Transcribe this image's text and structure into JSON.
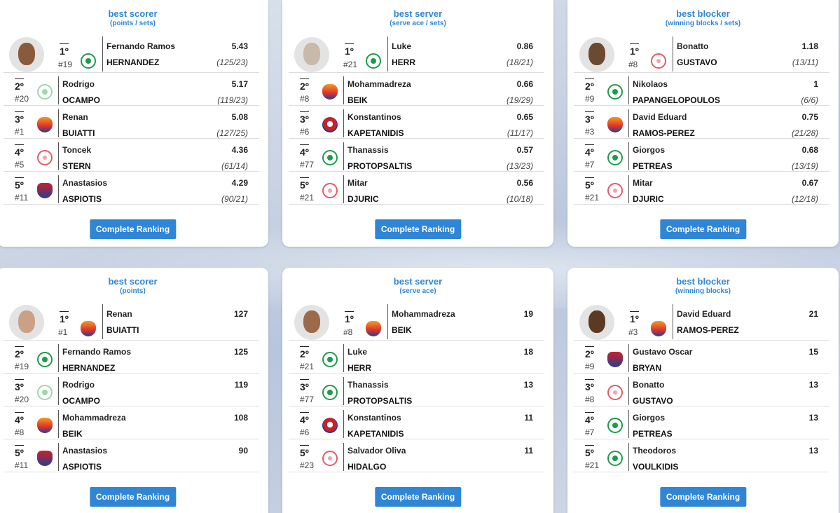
{
  "button_label": "Complete Ranking",
  "colors": {
    "accent": "#2f86d6"
  },
  "cards": [
    {
      "title": "best scorer",
      "subtitle": "(points / sets)",
      "rows": [
        {
          "rank": "1º",
          "jersey": "#19",
          "logo": "panathinaikos-logo",
          "first": "Fernando Ramos",
          "last": "HERNANDEZ",
          "value": "5.43",
          "detail": "(125/23)"
        },
        {
          "rank": "2º",
          "jersey": "#20",
          "logo": "panathinaikos-light-logo",
          "first": "Rodrigo",
          "last": "OCAMPO",
          "value": "5.17",
          "detail": "(119/23)"
        },
        {
          "rank": "3º",
          "jersey": "#1",
          "logo": "milon-logo",
          "first": "Renan",
          "last": "BUIATTI",
          "value": "5.08",
          "detail": "(127/25)"
        },
        {
          "rank": "4º",
          "jersey": "#5",
          "logo": "olympiacos-logo",
          "first": "Toncek",
          "last": "STERN",
          "value": "4.36",
          "detail": "(61/14)"
        },
        {
          "rank": "5º",
          "jersey": "#11",
          "logo": "kifisia-logo",
          "first": "Anastasios",
          "last": "ASPIOTIS",
          "value": "4.29",
          "detail": "(90/21)"
        }
      ]
    },
    {
      "title": "best server",
      "subtitle": "(serve ace / sets)",
      "rows": [
        {
          "rank": "1º",
          "jersey": "#21",
          "logo": "panathinaikos-logo",
          "first": "Luke",
          "last": "HERR",
          "value": "0.86",
          "detail": "(18/21)"
        },
        {
          "rank": "2º",
          "jersey": "#8",
          "logo": "milon-logo",
          "first": "Mohammadreza",
          "last": "BEIK",
          "value": "0.66",
          "detail": "(19/29)"
        },
        {
          "rank": "3º",
          "jersey": "#6",
          "logo": "foinikas-logo",
          "first": "Konstantinos",
          "last": "KAPETANIDIS",
          "value": "0.65",
          "detail": "(11/17)"
        },
        {
          "rank": "4º",
          "jersey": "#77",
          "logo": "panathinaikos-logo",
          "first": "Thanassis",
          "last": "PROTOPSALTIS",
          "value": "0.57",
          "detail": "(13/23)"
        },
        {
          "rank": "5º",
          "jersey": "#21",
          "logo": "olympiacos-logo",
          "first": "Mitar",
          "last": "DJURIC",
          "value": "0.56",
          "detail": "(10/18)"
        }
      ]
    },
    {
      "title": "best blocker",
      "subtitle": "(winning blocks / sets)",
      "rows": [
        {
          "rank": "1º",
          "jersey": "#8",
          "logo": "olympiacos-logo",
          "first": "Bonatto",
          "last": "GUSTAVO",
          "value": "1.18",
          "detail": "(13/11)"
        },
        {
          "rank": "2º",
          "jersey": "#9",
          "logo": "panathinaikos-logo",
          "first": "Nikolaos",
          "last": "PAPANGELOPOULOS",
          "value": "1",
          "detail": "(6/6)"
        },
        {
          "rank": "3º",
          "jersey": "#3",
          "logo": "milon-logo",
          "first": "David Eduard",
          "last": "RAMOS-PEREZ",
          "value": "0.75",
          "detail": "(21/28)"
        },
        {
          "rank": "4º",
          "jersey": "#7",
          "logo": "panathinaikos-logo",
          "first": "Giorgos",
          "last": "PETREAS",
          "value": "0.68",
          "detail": "(13/19)"
        },
        {
          "rank": "5º",
          "jersey": "#21",
          "logo": "olympiacos-logo",
          "first": "Mitar",
          "last": "DJURIC",
          "value": "0.67",
          "detail": "(12/18)"
        }
      ]
    },
    {
      "title": "best scorer",
      "subtitle": "(points)",
      "rows": [
        {
          "rank": "1º",
          "jersey": "#1",
          "logo": "milon-logo",
          "first": "Renan",
          "last": "BUIATTI",
          "value": "127",
          "detail": ""
        },
        {
          "rank": "2º",
          "jersey": "#19",
          "logo": "panathinaikos-logo",
          "first": "Fernando Ramos",
          "last": "HERNANDEZ",
          "value": "125",
          "detail": ""
        },
        {
          "rank": "3º",
          "jersey": "#20",
          "logo": "panathinaikos-light-logo",
          "first": "Rodrigo",
          "last": "OCAMPO",
          "value": "119",
          "detail": ""
        },
        {
          "rank": "4º",
          "jersey": "#8",
          "logo": "milon-logo",
          "first": "Mohammadreza",
          "last": "BEIK",
          "value": "108",
          "detail": ""
        },
        {
          "rank": "5º",
          "jersey": "#11",
          "logo": "kifisia-logo",
          "first": "Anastasios",
          "last": "ASPIOTIS",
          "value": "90",
          "detail": ""
        }
      ]
    },
    {
      "title": "best server",
      "subtitle": "(serve ace)",
      "rows": [
        {
          "rank": "1º",
          "jersey": "#8",
          "logo": "milon-logo",
          "first": "Mohammadreza",
          "last": "BEIK",
          "value": "19",
          "detail": ""
        },
        {
          "rank": "2º",
          "jersey": "#21",
          "logo": "panathinaikos-logo",
          "first": "Luke",
          "last": "HERR",
          "value": "18",
          "detail": ""
        },
        {
          "rank": "3º",
          "jersey": "#77",
          "logo": "panathinaikos-logo",
          "first": "Thanassis",
          "last": "PROTOPSALTIS",
          "value": "13",
          "detail": ""
        },
        {
          "rank": "4º",
          "jersey": "#6",
          "logo": "foinikas-logo",
          "first": "Konstantinos",
          "last": "KAPETANIDIS",
          "value": "11",
          "detail": ""
        },
        {
          "rank": "5º",
          "jersey": "#23",
          "logo": "olympiacos-logo",
          "first": "Salvador Oliva",
          "last": "HIDALGO",
          "value": "11",
          "detail": ""
        }
      ]
    },
    {
      "title": "best blocker",
      "subtitle": "(winning blocks)",
      "rows": [
        {
          "rank": "1º",
          "jersey": "#3",
          "logo": "milon-logo",
          "first": "David Eduard",
          "last": "RAMOS-PEREZ",
          "value": "21",
          "detail": ""
        },
        {
          "rank": "2º",
          "jersey": "#9",
          "logo": "kifisia-logo",
          "first": "Gustavo Oscar",
          "last": "BRYAN",
          "value": "15",
          "detail": ""
        },
        {
          "rank": "3º",
          "jersey": "#8",
          "logo": "olympiacos-logo",
          "first": "Bonatto",
          "last": "GUSTAVO",
          "value": "13",
          "detail": ""
        },
        {
          "rank": "4º",
          "jersey": "#7",
          "logo": "panathinaikos-logo",
          "first": "Giorgos",
          "last": "PETREAS",
          "value": "13",
          "detail": ""
        },
        {
          "rank": "5º",
          "jersey": "#21",
          "logo": "panathinaikos-logo",
          "first": "Theodoros",
          "last": "VOULKIDIS",
          "value": "13",
          "detail": ""
        }
      ]
    }
  ]
}
